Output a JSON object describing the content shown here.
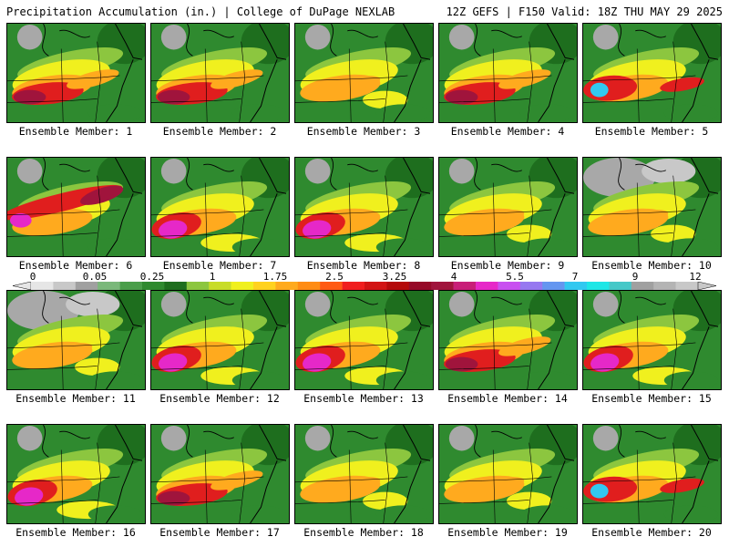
{
  "header": {
    "left_title": "Precipitation Accumulation (in.) | College of DuPage NEXLAB",
    "right_title": "12Z GEFS | F150 Valid: 18Z THU MAY 29 2025"
  },
  "members": [
    {
      "label": "Ensemble Member: 1",
      "pattern": "s-heavy"
    },
    {
      "label": "Ensemble Member: 2",
      "pattern": "s-heavy"
    },
    {
      "label": "Ensemble Member: 3",
      "pattern": "moderate"
    },
    {
      "label": "Ensemble Member: 4",
      "pattern": "s-heavy"
    },
    {
      "label": "Ensemble Member: 5",
      "pattern": "sw-heavy"
    },
    {
      "label": "Ensemble Member: 6",
      "pattern": "band"
    },
    {
      "label": "Ensemble Member: 7",
      "pattern": "sw-magenta"
    },
    {
      "label": "Ensemble Member: 8",
      "pattern": "sw-magenta"
    },
    {
      "label": "Ensemble Member: 9",
      "pattern": "moderate"
    },
    {
      "label": "Ensemble Member: 10",
      "pattern": "dry-north"
    },
    {
      "label": "Ensemble Member: 11",
      "pattern": "dry-north"
    },
    {
      "label": "Ensemble Member: 12",
      "pattern": "sw-magenta"
    },
    {
      "label": "Ensemble Member: 13",
      "pattern": "sw-magenta"
    },
    {
      "label": "Ensemble Member: 14",
      "pattern": "s-heavy"
    },
    {
      "label": "Ensemble Member: 15",
      "pattern": "sw-magenta"
    },
    {
      "label": "Ensemble Member: 16",
      "pattern": "sw-magenta"
    },
    {
      "label": "Ensemble Member: 17",
      "pattern": "s-heavy"
    },
    {
      "label": "Ensemble Member: 18",
      "pattern": "moderate"
    },
    {
      "label": "Ensemble Member: 19",
      "pattern": "moderate"
    },
    {
      "label": "Ensemble Member: 20",
      "pattern": "sw-heavy"
    }
  ],
  "colorbar": {
    "labels": [
      "0",
      "0.05",
      "0.25",
      "1",
      "1.75",
      "2.5",
      "3.25",
      "4",
      "5.5",
      "7",
      "9",
      "12"
    ],
    "colors": [
      "#e6e6e6",
      "#c8c8c8",
      "#a0a0a0",
      "#7ab87a",
      "#4a9e4a",
      "#2f8a2f",
      "#1e6e1e",
      "#8cc63f",
      "#c8dc28",
      "#f0f01e",
      "#ffd21e",
      "#ffaa1e",
      "#ff8c14",
      "#ff5a14",
      "#f01e1e",
      "#d21414",
      "#b40a0a",
      "#960a28",
      "#a0143c",
      "#c81e78",
      "#e628c8",
      "#c850f0",
      "#9678f0",
      "#6496f0",
      "#32c8f0",
      "#1ee6e6",
      "#46c8c8",
      "#a0a0a0",
      "#b4b4b4",
      "#c8c8c8"
    ]
  },
  "colors": {
    "green": "#2f8a2f",
    "dkgreen": "#1e6e1e",
    "ltgreen": "#8cc63f",
    "yellow": "#f0f01e",
    "orange": "#ffaa1e",
    "red": "#e01e1e",
    "dkred": "#a0143c",
    "magenta": "#e628c8",
    "cyan": "#32c8f0",
    "gray": "#a8a8a8"
  }
}
